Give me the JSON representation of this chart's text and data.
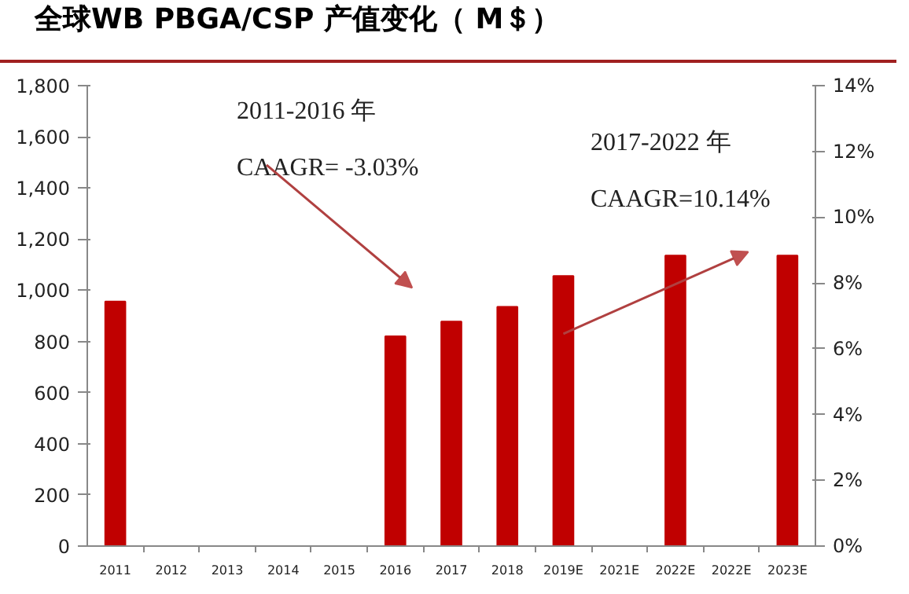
{
  "chart_data": {
    "type": "bar",
    "title": "全球WB PBGA/CSP 产值变化（ M＄）",
    "categories": [
      "2011",
      "2012",
      "2013",
      "2014",
      "2015",
      "2016",
      "2017",
      "2018",
      "2019E",
      "2021E",
      "2022E",
      "2022E",
      "2023E"
    ],
    "values": [
      956,
      null,
      null,
      null,
      null,
      820,
      878,
      935,
      1056,
      null,
      1136,
      null,
      1136
    ],
    "color": "#c00000",
    "ylim": [
      0,
      1800
    ],
    "yticks": [
      {
        "value": 0,
        "label": "0"
      },
      {
        "value": 200,
        "label": "200"
      },
      {
        "value": 400,
        "label": "400"
      },
      {
        "value": 600,
        "label": "600"
      },
      {
        "value": 800,
        "label": "800"
      },
      {
        "value": 1000,
        "label": "1,000"
      },
      {
        "value": 1200,
        "label": "1,200"
      },
      {
        "value": 1400,
        "label": "1,400"
      },
      {
        "value": 1600,
        "label": "1,600"
      },
      {
        "value": 1800,
        "label": "1,800"
      }
    ],
    "y2lim": [
      0,
      14
    ],
    "y2ticks": [
      {
        "value": 0,
        "label": "0%"
      },
      {
        "value": 2,
        "label": "2%"
      },
      {
        "value": 4,
        "label": "4%"
      },
      {
        "value": 6,
        "label": "6%"
      },
      {
        "value": 8,
        "label": "8%"
      },
      {
        "value": 10,
        "label": "10%"
      },
      {
        "value": 12,
        "label": "12%"
      },
      {
        "value": 14,
        "label": "14%"
      }
    ],
    "annotations": [
      "2011-2016 年",
      "CAAGR= -3.03%",
      "2017-2022 年",
      "CAAGR=10.14%"
    ],
    "grid": false
  }
}
